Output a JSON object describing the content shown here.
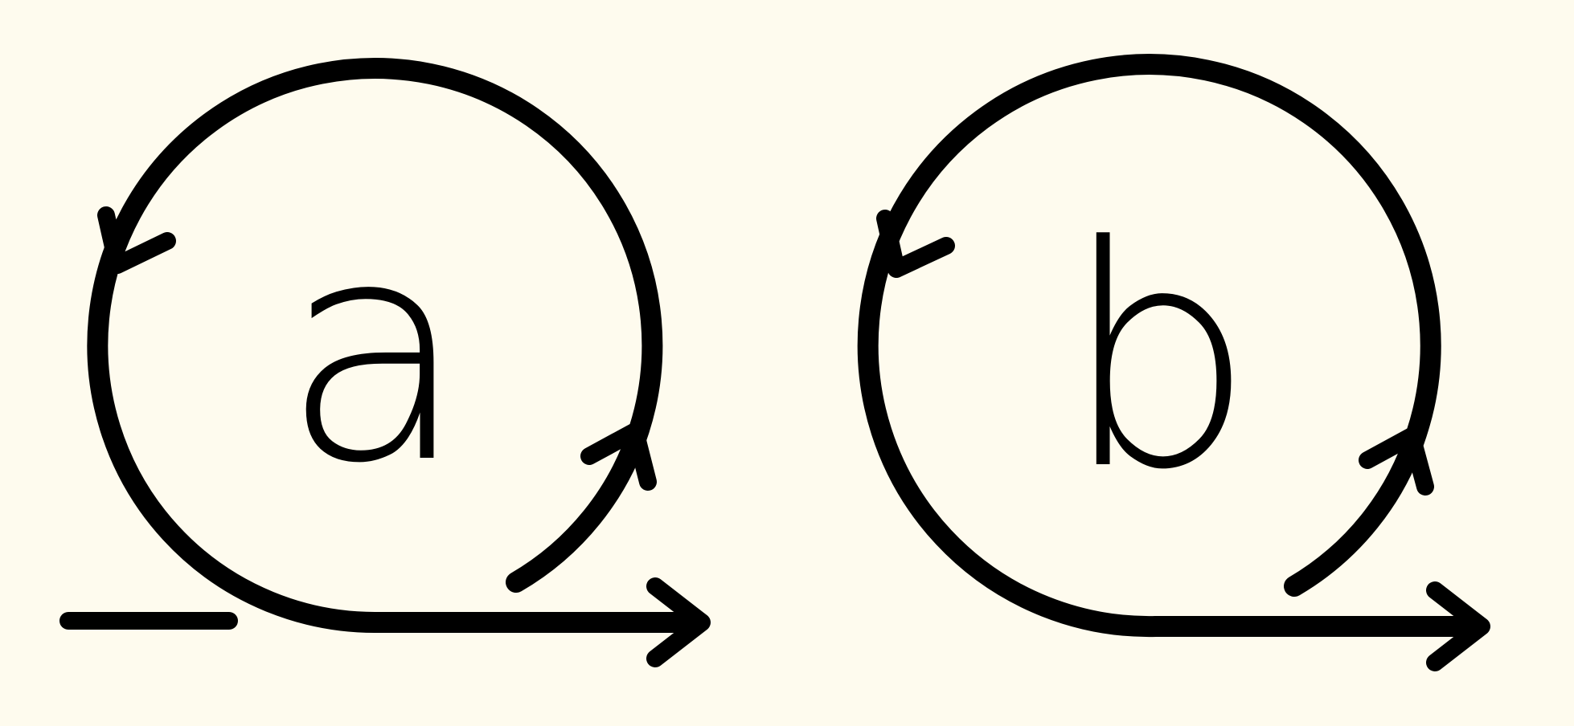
{
  "colors": {
    "background": "#FEFBEE",
    "ink": "#000000"
  },
  "diagrams": [
    {
      "label": "a"
    },
    {
      "label": "b"
    }
  ]
}
